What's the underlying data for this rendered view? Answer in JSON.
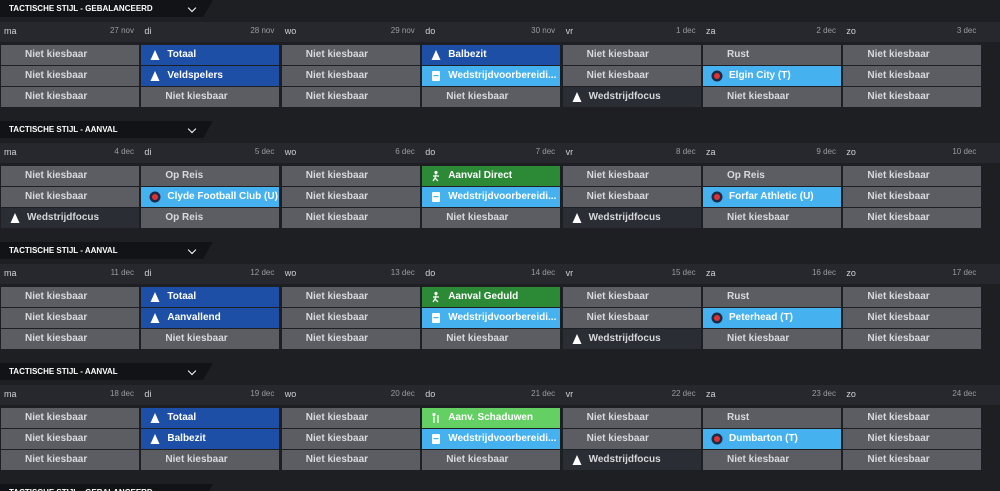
{
  "weeks": [
    {
      "title": "TACTISCHE STIJL - GEBALANCEERD",
      "days": [
        {
          "day": "ma",
          "date": "27 nov"
        },
        {
          "day": "di",
          "date": "28 nov"
        },
        {
          "day": "wo",
          "date": "29 nov"
        },
        {
          "day": "do",
          "date": "30 nov"
        },
        {
          "day": "vr",
          "date": "1 dec"
        },
        {
          "day": "za",
          "date": "2 dec"
        },
        {
          "day": "zo",
          "date": "3 dec"
        }
      ],
      "rows": [
        [
          {
            "text": "Niet kiesbaar",
            "kind": "gray"
          },
          {
            "text": "Totaal",
            "kind": "blue"
          },
          {
            "text": "Niet kiesbaar",
            "kind": "gray"
          },
          {
            "text": "Balbezit",
            "kind": "blue"
          },
          {
            "text": "Niet kiesbaar",
            "kind": "gray"
          },
          {
            "text": "Rust",
            "kind": "gray"
          },
          {
            "text": "Niet kiesbaar",
            "kind": "gray"
          }
        ],
        [
          {
            "text": "Niet kiesbaar",
            "kind": "gray"
          },
          {
            "text": "Veldspelers",
            "kind": "blue"
          },
          {
            "text": "Niet kiesbaar",
            "kind": "gray"
          },
          {
            "text": "Wedstrijdvoorbereidi...",
            "kind": "light"
          },
          {
            "text": "Niet kiesbaar",
            "kind": "gray"
          },
          {
            "text": "Elgin City (T)",
            "kind": "club"
          },
          {
            "text": "Niet kiesbaar",
            "kind": "gray"
          }
        ],
        [
          {
            "text": "Niet kiesbaar",
            "kind": "gray"
          },
          {
            "text": "Niet kiesbaar",
            "kind": "gray"
          },
          {
            "text": "Niet kiesbaar",
            "kind": "gray"
          },
          {
            "text": "Niet kiesbaar",
            "kind": "gray"
          },
          {
            "text": "Wedstrijdfocus",
            "kind": "dark"
          },
          {
            "text": "Niet kiesbaar",
            "kind": "gray"
          },
          {
            "text": "Niet kiesbaar",
            "kind": "gray"
          }
        ]
      ]
    },
    {
      "title": "TACTISCHE STIJL - AANVAL",
      "days": [
        {
          "day": "ma",
          "date": "4 dec"
        },
        {
          "day": "di",
          "date": "5 dec"
        },
        {
          "day": "wo",
          "date": "6 dec"
        },
        {
          "day": "do",
          "date": "7 dec"
        },
        {
          "day": "vr",
          "date": "8 dec"
        },
        {
          "day": "za",
          "date": "9 dec"
        },
        {
          "day": "zo",
          "date": "10 dec"
        }
      ],
      "rows": [
        [
          {
            "text": "Niet kiesbaar",
            "kind": "gray"
          },
          {
            "text": "Op Reis",
            "kind": "gray"
          },
          {
            "text": "Niet kiesbaar",
            "kind": "gray"
          },
          {
            "text": "Aanval Direct",
            "kind": "green"
          },
          {
            "text": "Niet kiesbaar",
            "kind": "gray"
          },
          {
            "text": "Op Reis",
            "kind": "gray"
          },
          {
            "text": "Niet kiesbaar",
            "kind": "gray"
          }
        ],
        [
          {
            "text": "Niet kiesbaar",
            "kind": "gray"
          },
          {
            "text": "Clyde Football Club (U)",
            "kind": "club"
          },
          {
            "text": "Niet kiesbaar",
            "kind": "gray"
          },
          {
            "text": "Wedstrijdvoorbereidi...",
            "kind": "light"
          },
          {
            "text": "Niet kiesbaar",
            "kind": "gray"
          },
          {
            "text": "Forfar Athletic (U)",
            "kind": "club"
          },
          {
            "text": "Niet kiesbaar",
            "kind": "gray"
          }
        ],
        [
          {
            "text": "Wedstrijdfocus",
            "kind": "dark"
          },
          {
            "text": "Op Reis",
            "kind": "gray"
          },
          {
            "text": "Niet kiesbaar",
            "kind": "gray"
          },
          {
            "text": "Niet kiesbaar",
            "kind": "gray"
          },
          {
            "text": "Wedstrijdfocus",
            "kind": "dark"
          },
          {
            "text": "Niet kiesbaar",
            "kind": "gray"
          },
          {
            "text": "Niet kiesbaar",
            "kind": "gray"
          }
        ]
      ]
    },
    {
      "title": "TACTISCHE STIJL - AANVAL",
      "days": [
        {
          "day": "ma",
          "date": "11 dec"
        },
        {
          "day": "di",
          "date": "12 dec"
        },
        {
          "day": "wo",
          "date": "13 dec"
        },
        {
          "day": "do",
          "date": "14 dec"
        },
        {
          "day": "vr",
          "date": "15 dec"
        },
        {
          "day": "za",
          "date": "16 dec"
        },
        {
          "day": "zo",
          "date": "17 dec"
        }
      ],
      "rows": [
        [
          {
            "text": "Niet kiesbaar",
            "kind": "gray"
          },
          {
            "text": "Totaal",
            "kind": "blue"
          },
          {
            "text": "Niet kiesbaar",
            "kind": "gray"
          },
          {
            "text": "Aanval Geduld",
            "kind": "green"
          },
          {
            "text": "Niet kiesbaar",
            "kind": "gray"
          },
          {
            "text": "Rust",
            "kind": "gray"
          },
          {
            "text": "Niet kiesbaar",
            "kind": "gray"
          }
        ],
        [
          {
            "text": "Niet kiesbaar",
            "kind": "gray"
          },
          {
            "text": "Aanvallend",
            "kind": "blue"
          },
          {
            "text": "Niet kiesbaar",
            "kind": "gray"
          },
          {
            "text": "Wedstrijdvoorbereidi...",
            "kind": "light"
          },
          {
            "text": "Niet kiesbaar",
            "kind": "gray"
          },
          {
            "text": "Peterhead (T)",
            "kind": "club"
          },
          {
            "text": "Niet kiesbaar",
            "kind": "gray"
          }
        ],
        [
          {
            "text": "Niet kiesbaar",
            "kind": "gray"
          },
          {
            "text": "Niet kiesbaar",
            "kind": "gray"
          },
          {
            "text": "Niet kiesbaar",
            "kind": "gray"
          },
          {
            "text": "Niet kiesbaar",
            "kind": "gray"
          },
          {
            "text": "Wedstrijdfocus",
            "kind": "dark"
          },
          {
            "text": "Niet kiesbaar",
            "kind": "gray"
          },
          {
            "text": "Niet kiesbaar",
            "kind": "gray"
          }
        ]
      ]
    },
    {
      "title": "TACTISCHE STIJL - AANVAL",
      "days": [
        {
          "day": "ma",
          "date": "18 dec"
        },
        {
          "day": "di",
          "date": "19 dec"
        },
        {
          "day": "wo",
          "date": "20 dec"
        },
        {
          "day": "do",
          "date": "21 dec"
        },
        {
          "day": "vr",
          "date": "22 dec"
        },
        {
          "day": "za",
          "date": "23 dec"
        },
        {
          "day": "zo",
          "date": "24 dec"
        }
      ],
      "rows": [
        [
          {
            "text": "Niet kiesbaar",
            "kind": "gray"
          },
          {
            "text": "Totaal",
            "kind": "blue"
          },
          {
            "text": "Niet kiesbaar",
            "kind": "gray"
          },
          {
            "text": "Aanv. Schaduwen",
            "kind": "lightgreen"
          },
          {
            "text": "Niet kiesbaar",
            "kind": "gray"
          },
          {
            "text": "Rust",
            "kind": "gray"
          },
          {
            "text": "Niet kiesbaar",
            "kind": "gray"
          }
        ],
        [
          {
            "text": "Niet kiesbaar",
            "kind": "gray"
          },
          {
            "text": "Balbezit",
            "kind": "blue"
          },
          {
            "text": "Niet kiesbaar",
            "kind": "gray"
          },
          {
            "text": "Wedstrijdvoorbereidi...",
            "kind": "light"
          },
          {
            "text": "Niet kiesbaar",
            "kind": "gray"
          },
          {
            "text": "Dumbarton (T)",
            "kind": "club"
          },
          {
            "text": "Niet kiesbaar",
            "kind": "gray"
          }
        ],
        [
          {
            "text": "Niet kiesbaar",
            "kind": "gray"
          },
          {
            "text": "Niet kiesbaar",
            "kind": "gray"
          },
          {
            "text": "Niet kiesbaar",
            "kind": "gray"
          },
          {
            "text": "Niet kiesbaar",
            "kind": "gray"
          },
          {
            "text": "Wedstrijdfocus",
            "kind": "dark"
          },
          {
            "text": "Niet kiesbaar",
            "kind": "gray"
          },
          {
            "text": "Niet kiesbaar",
            "kind": "gray"
          }
        ]
      ]
    },
    {
      "title": "TACTISCHE STIJL - GEBALANCEERD"
    }
  ]
}
